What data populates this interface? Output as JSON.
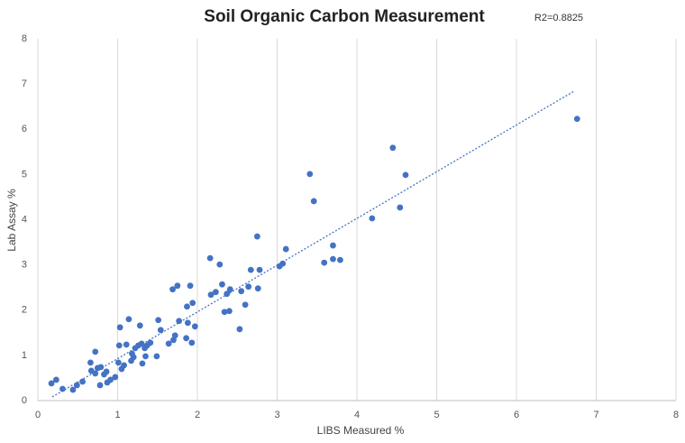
{
  "chart_data": {
    "type": "scatter",
    "title": "Soil Organic Carbon Measurement",
    "annotation": "R2=0.8825",
    "x_label": "LIBS Measured %",
    "y_label": "Lab Assay %",
    "xlim": [
      0,
      8
    ],
    "ylim": [
      0,
      8
    ],
    "xticks": [
      0,
      1,
      2,
      3,
      4,
      5,
      6,
      7,
      8
    ],
    "yticks": [
      0,
      1,
      2,
      3,
      4,
      5,
      6,
      7,
      8
    ],
    "grid": "x",
    "series": [
      {
        "color": "#4472c4",
        "x": [
          0.17,
          0.23,
          0.31,
          0.44,
          0.49,
          0.56,
          0.66,
          0.67,
          0.72,
          0.72,
          0.75,
          0.78,
          0.79,
          0.83,
          0.86,
          0.87,
          0.91,
          0.97,
          1.01,
          1.02,
          1.03,
          1.05,
          1.08,
          1.11,
          1.14,
          1.17,
          1.18,
          1.2,
          1.22,
          1.26,
          1.28,
          1.3,
          1.31,
          1.34,
          1.35,
          1.37,
          1.41,
          1.49,
          1.51,
          1.54,
          1.64,
          1.69,
          1.7,
          1.72,
          1.75,
          1.77,
          1.86,
          1.87,
          1.88,
          1.91,
          1.93,
          1.94,
          1.97,
          2.16,
          2.17,
          2.23,
          2.28,
          2.31,
          2.34,
          2.37,
          2.4,
          2.41,
          2.53,
          2.55,
          2.6,
          2.64,
          2.67,
          2.75,
          2.76,
          2.78,
          3.03,
          3.07,
          3.11,
          3.41,
          3.46,
          3.59,
          3.7,
          3.7,
          3.79,
          4.19,
          4.45,
          4.54,
          4.61,
          6.76
        ],
        "values": [
          0.38,
          0.46,
          0.26,
          0.24,
          0.34,
          0.42,
          0.84,
          0.66,
          0.6,
          1.08,
          0.72,
          0.34,
          0.74,
          0.58,
          0.64,
          0.4,
          0.46,
          0.52,
          0.84,
          1.22,
          1.62,
          0.7,
          0.78,
          1.24,
          1.8,
          0.88,
          1.04,
          0.96,
          1.16,
          1.22,
          1.66,
          1.26,
          0.82,
          1.16,
          0.98,
          1.22,
          1.28,
          0.98,
          1.78,
          1.56,
          1.26,
          2.46,
          1.34,
          1.44,
          2.54,
          1.76,
          1.38,
          2.08,
          1.72,
          2.54,
          1.28,
          2.16,
          1.64,
          3.15,
          2.34,
          2.4,
          3.01,
          2.57,
          1.96,
          2.36,
          1.98,
          2.46,
          1.58,
          2.42,
          2.12,
          2.52,
          2.89,
          3.63,
          2.48,
          2.89,
          2.97,
          3.03,
          3.35,
          5.01,
          4.41,
          3.05,
          3.43,
          3.13,
          3.11,
          4.03,
          5.59,
          4.27,
          4.99,
          6.23
        ]
      }
    ],
    "trendline": {
      "color": "#4472c4",
      "x": [
        0.18,
        6.73
      ],
      "y": [
        0.08,
        6.85
      ]
    }
  }
}
